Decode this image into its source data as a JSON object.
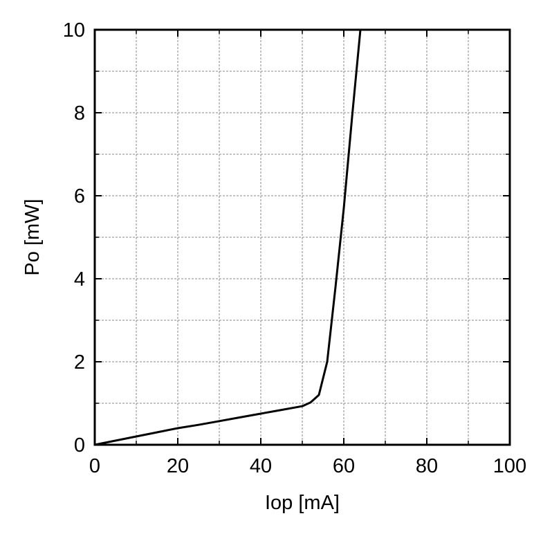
{
  "chart_data": {
    "type": "line",
    "title": "",
    "xlabel": "Iop [mA]",
    "ylabel": "Po [mW]",
    "xlim": [
      0,
      100
    ],
    "ylim": [
      0,
      10
    ],
    "x_ticks": [
      0,
      20,
      40,
      60,
      80,
      100
    ],
    "y_ticks": [
      0,
      2,
      4,
      6,
      8,
      10
    ],
    "x_tick_labels": [
      "0",
      "20",
      "40",
      "60",
      "80",
      "100"
    ],
    "y_tick_labels": [
      "0",
      "2",
      "4",
      "6",
      "8",
      "10"
    ],
    "grid": true,
    "series": [
      {
        "x": [
          0,
          5,
          10,
          15,
          20,
          25,
          30,
          35,
          40,
          45,
          50,
          52,
          54,
          56,
          58,
          60,
          62,
          64
        ],
        "y": [
          0,
          0.1,
          0.2,
          0.3,
          0.4,
          0.48,
          0.57,
          0.66,
          0.75,
          0.84,
          0.93,
          1.02,
          1.2,
          2.0,
          3.8,
          5.7,
          7.9,
          10.0
        ]
      }
    ],
    "colors": {
      "line": "#000000",
      "grid": "#888888",
      "axes": "#000000"
    }
  }
}
